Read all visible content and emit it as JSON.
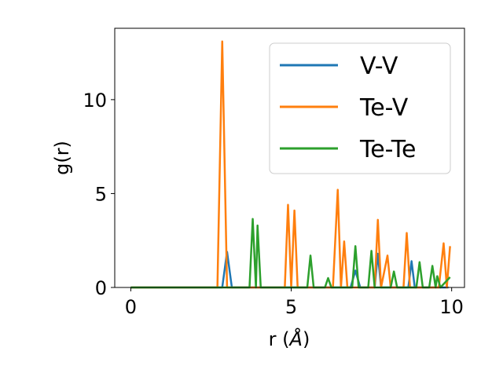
{
  "chart_data": {
    "type": "line",
    "xlabel_prefix": "r (",
    "xlabel_unit": "Å",
    "xlabel_suffix": ")",
    "ylabel": "g(r)",
    "xlim": [
      -0.5,
      10.4
    ],
    "ylim": [
      0,
      13.8
    ],
    "xticks": [
      0,
      5,
      10
    ],
    "yticks": [
      0,
      5,
      10
    ],
    "grid": false,
    "legend_position": "top-right",
    "series": [
      {
        "name": "V-V",
        "color": "#1f77b4",
        "points": [
          [
            0,
            0
          ],
          [
            2.85,
            0
          ],
          [
            3.0,
            1.9
          ],
          [
            3.15,
            0
          ],
          [
            6.85,
            0
          ],
          [
            7.0,
            0.9
          ],
          [
            7.15,
            0
          ],
          [
            7.6,
            0
          ],
          [
            7.7,
            1.8
          ],
          [
            7.8,
            0
          ],
          [
            8.65,
            0
          ],
          [
            8.75,
            1.4
          ],
          [
            8.85,
            0
          ],
          [
            9.9,
            0
          ]
        ]
      },
      {
        "name": "Te-V",
        "color": "#ff7f0e",
        "points": [
          [
            0,
            0
          ],
          [
            2.7,
            0
          ],
          [
            2.85,
            13.1
          ],
          [
            3.0,
            0
          ],
          [
            4.8,
            0
          ],
          [
            4.9,
            4.4
          ],
          [
            5.0,
            0
          ],
          [
            5.1,
            4.1
          ],
          [
            5.2,
            0
          ],
          [
            6.3,
            0
          ],
          [
            6.45,
            5.2
          ],
          [
            6.55,
            0
          ],
          [
            6.65,
            2.45
          ],
          [
            6.75,
            0
          ],
          [
            7.6,
            0
          ],
          [
            7.7,
            3.6
          ],
          [
            7.8,
            0
          ],
          [
            8.0,
            1.7
          ],
          [
            8.1,
            0
          ],
          [
            8.5,
            0
          ],
          [
            8.6,
            2.9
          ],
          [
            8.7,
            0
          ],
          [
            9.6,
            0
          ],
          [
            9.75,
            2.35
          ],
          [
            9.85,
            0
          ],
          [
            9.95,
            2.2
          ]
        ]
      },
      {
        "name": "Te-Te",
        "color": "#2ca02c",
        "points": [
          [
            0,
            0
          ],
          [
            3.7,
            0
          ],
          [
            3.8,
            3.65
          ],
          [
            3.9,
            0
          ],
          [
            3.95,
            3.3
          ],
          [
            4.05,
            0
          ],
          [
            5.5,
            0
          ],
          [
            5.6,
            1.7
          ],
          [
            5.7,
            0
          ],
          [
            6.05,
            0
          ],
          [
            6.15,
            0.5
          ],
          [
            6.25,
            0
          ],
          [
            6.9,
            0
          ],
          [
            7.0,
            2.2
          ],
          [
            7.1,
            0
          ],
          [
            7.4,
            0
          ],
          [
            7.5,
            1.95
          ],
          [
            7.6,
            0
          ],
          [
            8.1,
            0
          ],
          [
            8.2,
            0.85
          ],
          [
            8.3,
            0
          ],
          [
            8.9,
            0
          ],
          [
            9.0,
            1.35
          ],
          [
            9.1,
            0
          ],
          [
            9.3,
            0
          ],
          [
            9.4,
            1.15
          ],
          [
            9.5,
            0
          ],
          [
            9.55,
            0.6
          ],
          [
            9.65,
            0
          ],
          [
            9.95,
            0.55
          ]
        ]
      }
    ]
  }
}
